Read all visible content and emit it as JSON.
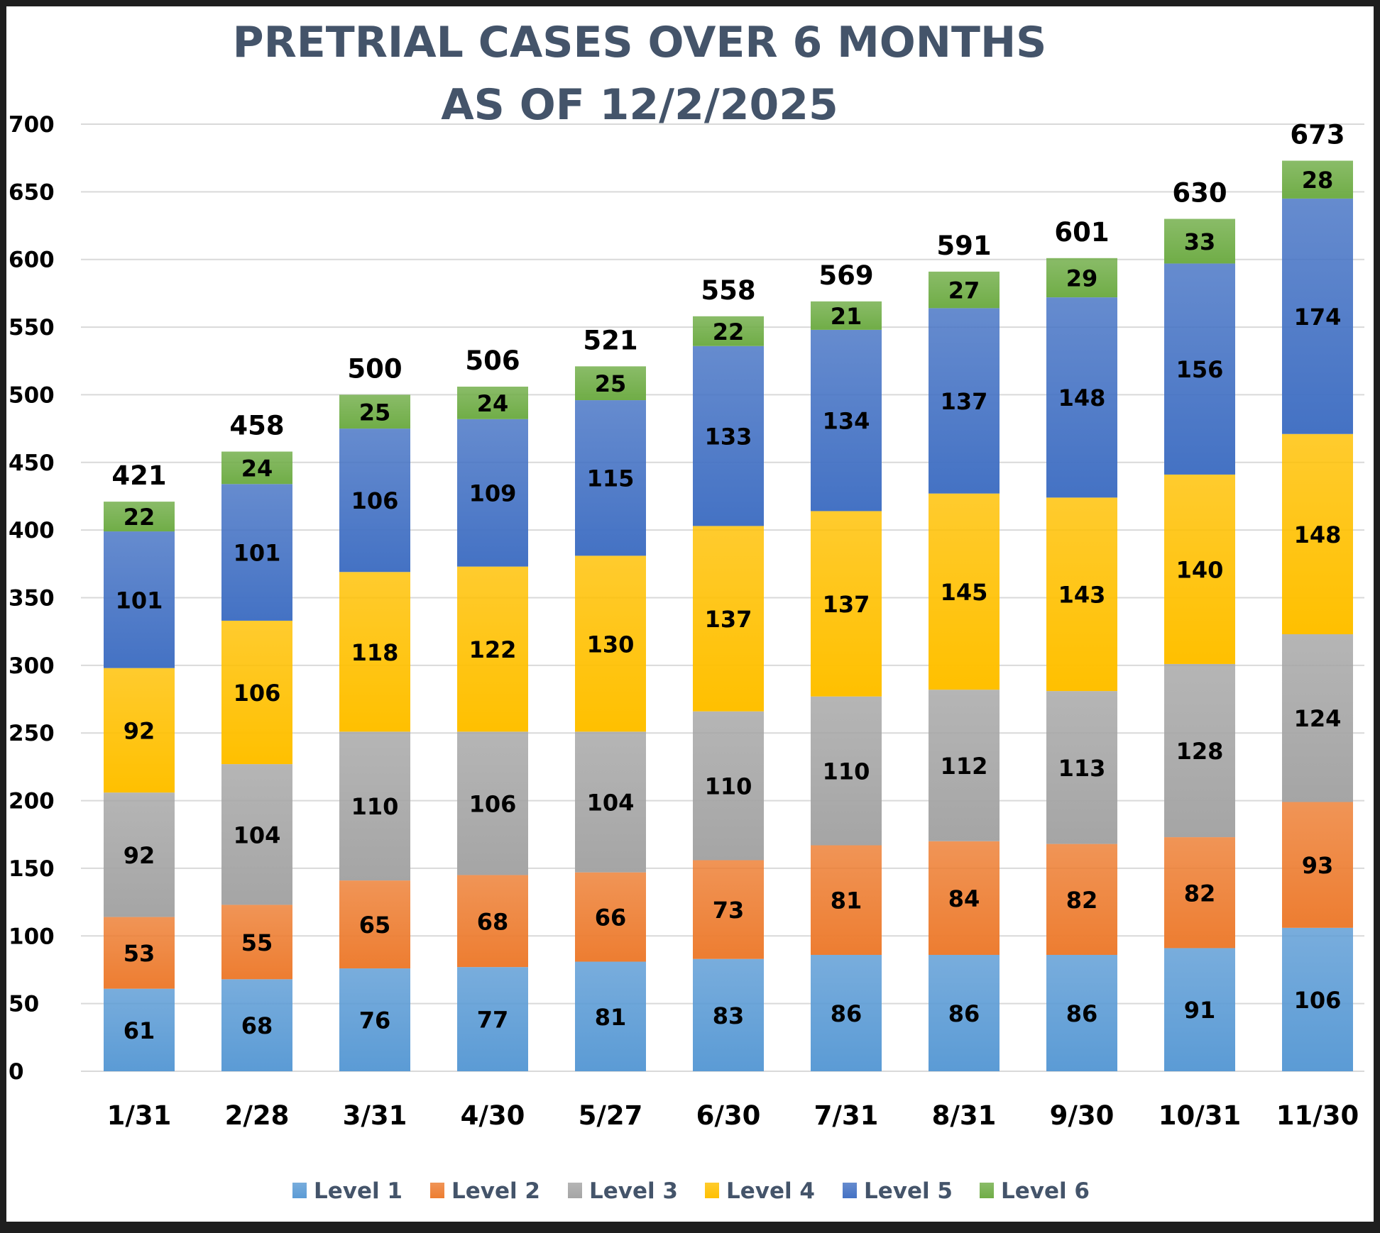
{
  "chart_data": {
    "type": "bar",
    "stacked": true,
    "title": [
      "PRETRIAL CASES OVER 6 MONTHS",
      "AS OF 12/2/2025"
    ],
    "xlabel": "",
    "ylabel": "",
    "ylim": [
      0,
      700
    ],
    "yticks": [
      0,
      50,
      100,
      150,
      200,
      250,
      300,
      350,
      400,
      450,
      500,
      550,
      600,
      650,
      700
    ],
    "grid": true,
    "legend_position": "bottom",
    "categories": [
      "1/31",
      "2/28",
      "3/31",
      "4/30",
      "5/27",
      "6/30",
      "7/31",
      "8/31",
      "9/30",
      "10/31",
      "11/30"
    ],
    "series": [
      {
        "name": "Level 1",
        "color": "#5B9BD5",
        "values": [
          61,
          68,
          76,
          77,
          81,
          83,
          86,
          86,
          86,
          91,
          106
        ]
      },
      {
        "name": "Level 2",
        "color": "#ED7D31",
        "values": [
          53,
          55,
          65,
          68,
          66,
          73,
          81,
          84,
          82,
          82,
          93
        ]
      },
      {
        "name": "Level 3",
        "color": "#A5A5A5",
        "values": [
          92,
          104,
          110,
          106,
          104,
          110,
          110,
          112,
          113,
          128,
          124
        ]
      },
      {
        "name": "Level 4",
        "color": "#FFC000",
        "values": [
          92,
          106,
          118,
          122,
          130,
          137,
          137,
          145,
          143,
          140,
          148
        ]
      },
      {
        "name": "Level 5",
        "color": "#4472C4",
        "values": [
          101,
          101,
          106,
          109,
          115,
          133,
          134,
          137,
          148,
          156,
          174
        ]
      },
      {
        "name": "Level 6",
        "color": "#70AD47",
        "values": [
          22,
          24,
          25,
          24,
          25,
          22,
          21,
          27,
          29,
          33,
          28
        ]
      }
    ],
    "totals": [
      421,
      458,
      500,
      506,
      521,
      558,
      569,
      591,
      601,
      630,
      673
    ]
  }
}
